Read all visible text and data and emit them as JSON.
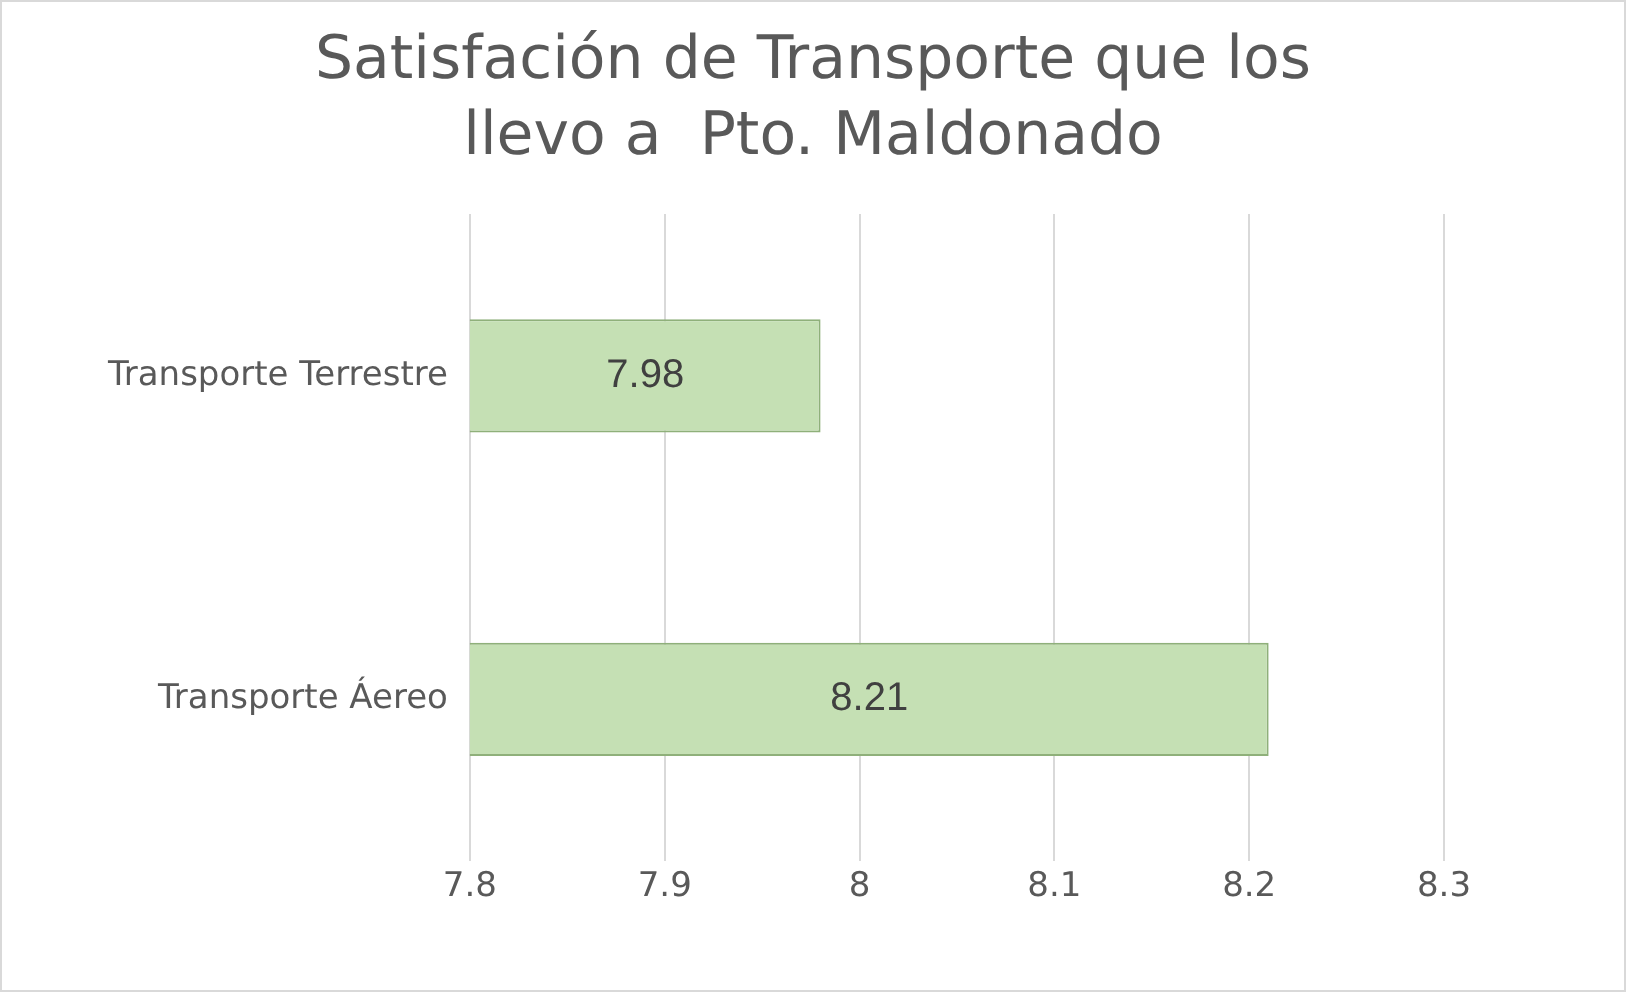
{
  "chart_data": {
    "type": "bar",
    "orientation": "horizontal",
    "title": "Satisfación de Transporte que los llevo a  Pto. Maldonado",
    "categories": [
      "Transporte Terrestre",
      "Transporte Áereo"
    ],
    "values": [
      7.98,
      8.21
    ],
    "color": "#c5e0b4",
    "xlim": [
      7.8,
      8.3
    ],
    "xticks": [
      7.8,
      7.9,
      8,
      8.1,
      8.2,
      8.3
    ],
    "grid": "x",
    "legend": false,
    "data_labels": true
  }
}
